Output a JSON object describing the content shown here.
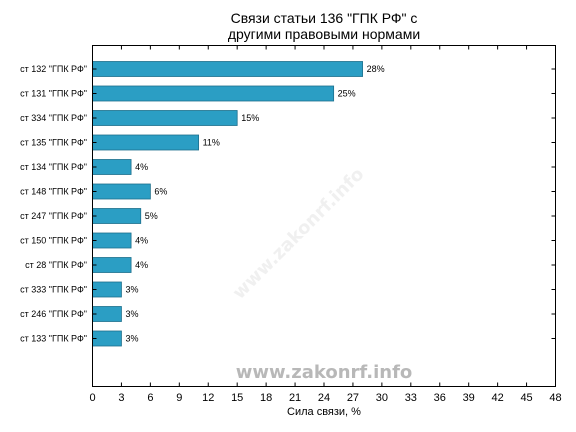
{
  "chart_data": {
    "type": "bar",
    "orientation": "horizontal",
    "title_line1": "Связи статьи 136 \"ГПК РФ\" с",
    "title_line2": "другими правовыми нормами",
    "xlabel": "Сила связи, %",
    "ylabel": "",
    "xlim": [
      0,
      48
    ],
    "xticks": [
      "0",
      "3",
      "6",
      "9",
      "12",
      "15",
      "18",
      "21",
      "24",
      "27",
      "30",
      "33",
      "36",
      "39",
      "42",
      "45",
      "48"
    ],
    "grid": false,
    "categories": [
      "ст 132 \"ГПК РФ\"",
      "ст 131 \"ГПК РФ\"",
      "ст 334 \"ГПК РФ\"",
      "ст 135 \"ГПК РФ\"",
      "ст 134 \"ГПК РФ\"",
      "ст 148 \"ГПК РФ\"",
      "ст 247 \"ГПК РФ\"",
      "ст 150 \"ГПК РФ\"",
      "ст 28 \"ГПК РФ\"",
      "ст 333 \"ГПК РФ\"",
      "ст 246 \"ГПК РФ\"",
      "ст 133 \"ГПК РФ\""
    ],
    "values": [
      28,
      25,
      15,
      11,
      4,
      6,
      5,
      4,
      4,
      3,
      3,
      3
    ],
    "value_labels": [
      "28%",
      "25%",
      "15%",
      "11%",
      "4%",
      "6%",
      "5%",
      "4%",
      "4%",
      "3%",
      "3%",
      "3%"
    ],
    "bar_color": "#2b9ec4",
    "bar_edge_color": "#1d6f8c"
  },
  "watermark": {
    "text": "www.zakonrf.info",
    "color": "#b8b8b8"
  }
}
